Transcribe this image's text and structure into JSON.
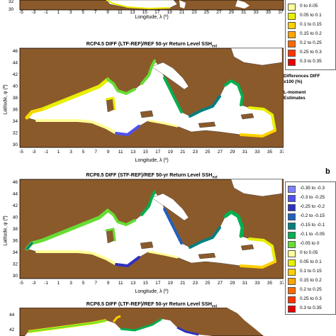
{
  "panel_b_label": "b",
  "x_ticks": [
    "-5",
    "-3",
    "-1",
    "1",
    "3",
    "5",
    "7",
    "9",
    "11",
    "13",
    "15",
    "17",
    "19",
    "21",
    "23",
    "25",
    "27",
    "29",
    "31",
    "33",
    "35",
    "37"
  ],
  "y_ticks": [
    "46",
    "44",
    "42",
    "40",
    "38",
    "36",
    "34",
    "32",
    "30"
  ],
  "top_partial_y_ticks": [
    "32",
    "30"
  ],
  "bottom_partial_y_ticks": [
    "44",
    "42"
  ],
  "top_partial_xlabel": "Longitude, λ (º)",
  "maps": [
    {
      "title": "RCP4.5 DIFF (LTF-REF)/REF 50-yr Return Level SSH",
      "title_sub": "ext",
      "xlabel": "Longitude, λ (º)",
      "ylabel": "Latitude, φ (º)"
    },
    {
      "title": "RCP8.5 DIFF (STF-REF)/REF 50-yr Return Level SSH",
      "title_sub": "ext",
      "xlabel": "Longitude, λ (º)",
      "ylabel": "Latitude, φ (º)"
    },
    {
      "title": "RCP8.5 DIFF (LTF-REF)/REF 50-yr Return Level SSH",
      "title_sub": "ext"
    }
  ],
  "legend_top": [
    {
      "label": "0 to 0.05",
      "color": "#ffff99"
    },
    {
      "label": "0.05 to 0.1",
      "color": "#e8f000"
    },
    {
      "label": "0.1 to 0.15",
      "color": "#ffd000"
    },
    {
      "label": "0.15 to 0.2",
      "color": "#ffa500"
    },
    {
      "label": "0.2 to 0.25",
      "color": "#ff6a00"
    },
    {
      "label": "0.25 to 0.3",
      "color": "#ff3300"
    },
    {
      "label": "0.3 to 0.35",
      "color": "#e60000"
    }
  ],
  "legend_note": {
    "line1": "Differences DIFF",
    "line2": "x100 (%)",
    "line3": "L-moment",
    "line4": "Estimates"
  },
  "legend_b": [
    {
      "label": "-0.35 to -0.3",
      "color": "#8080ff"
    },
    {
      "label": "-0.3 to -0.25",
      "color": "#5050f0"
    },
    {
      "label": "-0.25 to -0.2",
      "color": "#3030c0"
    },
    {
      "label": "-0.2 to -0.15",
      "color": "#2060c0"
    },
    {
      "label": "-0.15 to -0.1",
      "color": "#008080"
    },
    {
      "label": "-0.1 to -0.05",
      "color": "#00b050"
    },
    {
      "label": "-0.05 to 0",
      "color": "#66dd33"
    },
    {
      "label": "0 to 0.05",
      "color": "#ffff99"
    },
    {
      "label": "0.05 to 0.1",
      "color": "#e8f000"
    },
    {
      "label": "0.1 to 0.15",
      "color": "#ffd000"
    },
    {
      "label": "0.15 to 0.2",
      "color": "#ffa500"
    },
    {
      "label": "0.2 to 0.25",
      "color": "#ff6a00"
    },
    {
      "label": "0.25 to 0.3",
      "color": "#ff3300"
    },
    {
      "label": "0.3 to 0.35",
      "color": "#e60000"
    }
  ],
  "colors": {
    "land": "#8b5a2b",
    "sea": "#ffffff",
    "coast_outline": "#333333"
  }
}
